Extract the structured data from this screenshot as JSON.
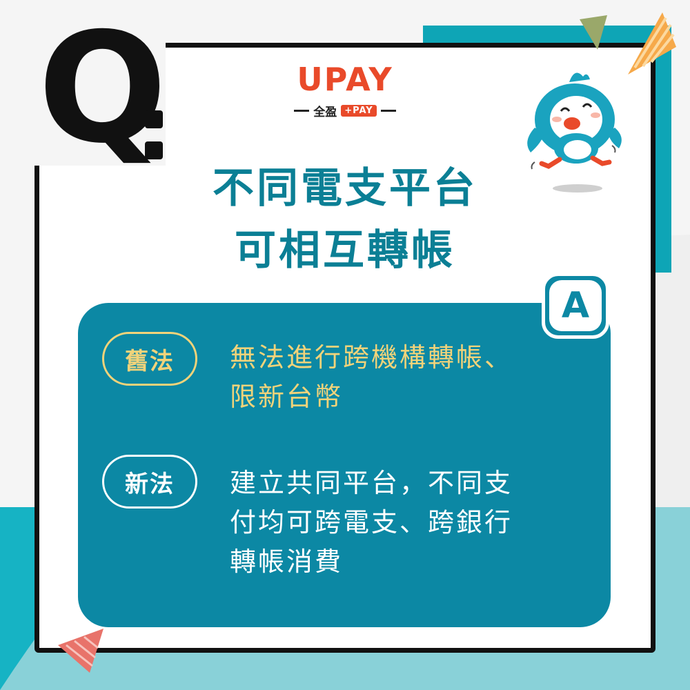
{
  "question_mark": "Q",
  "brand": {
    "name": "UPAY",
    "sub_label": "全盈",
    "sub_badge": "+PAY",
    "accent_color": "#e94a2a"
  },
  "title": {
    "line1": "不同電支平台",
    "line2": "可相互轉帳",
    "color": "#0b7f95"
  },
  "answer_badge": "A",
  "old_law": {
    "label": "舊法",
    "text_line1": "無法進行跨機構轉帳、",
    "text_line2": "限新台幣",
    "color": "#f1d37a"
  },
  "new_law": {
    "label": "新法",
    "text_line1": "建立共同平台，不同支",
    "text_line2": "付均可跨電支、跨銀行",
    "text_line3": "轉帳消費",
    "color": "#ffffff"
  },
  "colors": {
    "panel": "#0c88a4",
    "teal_background": "#16b3c4",
    "border": "#111111"
  },
  "icons": [
    "mascot-bird-icon",
    "party-flag-icon"
  ]
}
